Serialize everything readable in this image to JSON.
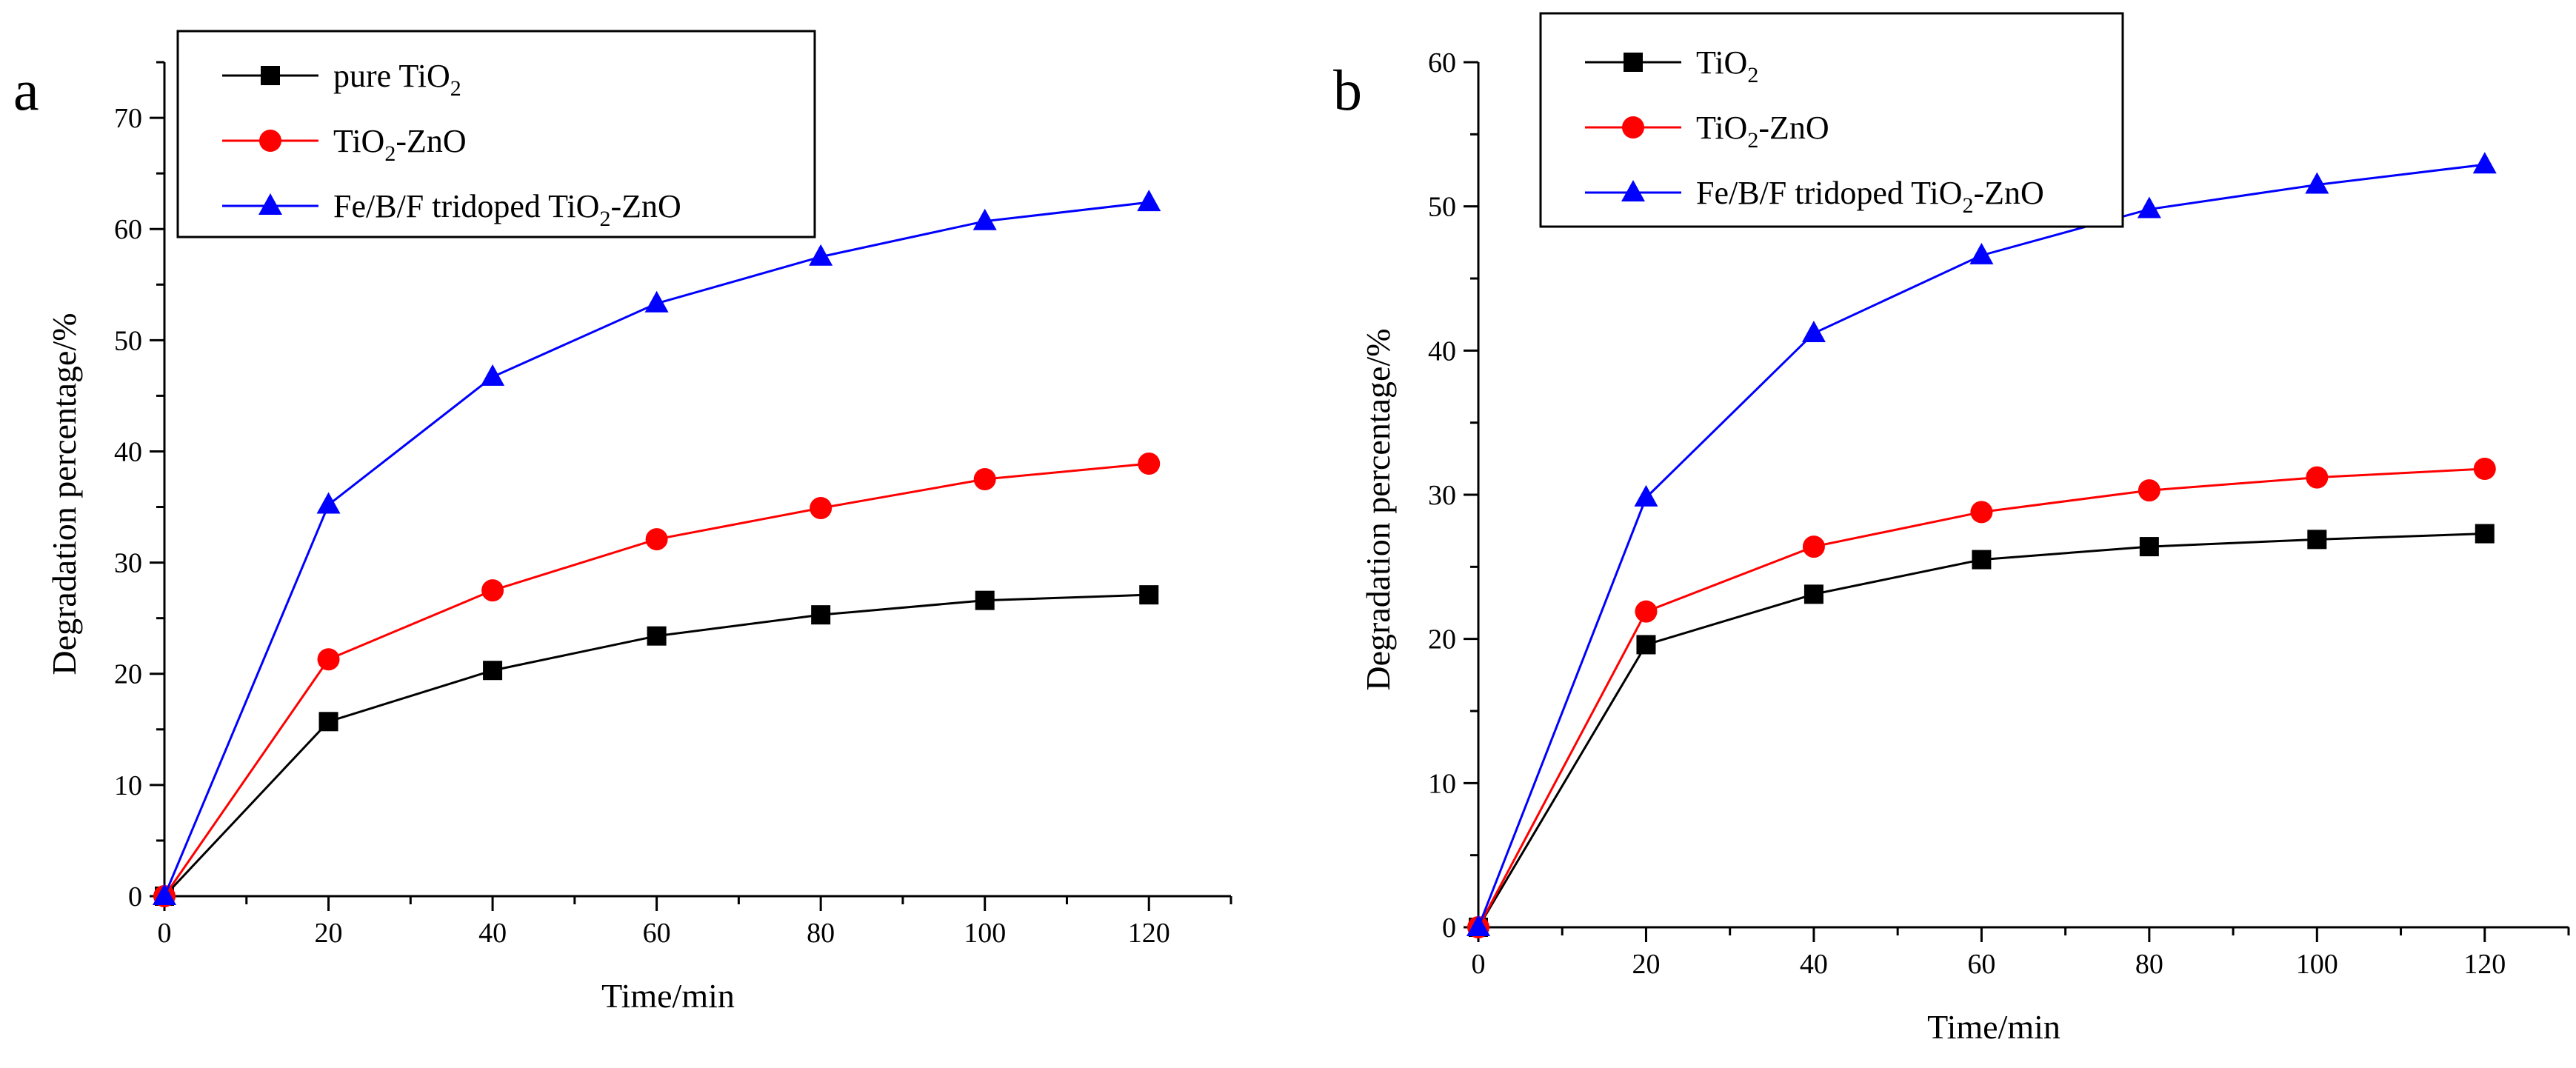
{
  "chart_data": [
    {
      "panel_label": "a",
      "type": "line",
      "xlabel": "Time/min",
      "ylabel": "Degradation percentage/%",
      "xlim": [
        0,
        130
      ],
      "ylim": [
        0,
        75
      ],
      "xticks": [
        0,
        20,
        40,
        60,
        80,
        100,
        120
      ],
      "yticks": [
        0,
        10,
        20,
        30,
        40,
        50,
        60,
        70
      ],
      "legend_position": "top-left",
      "grid": false,
      "x": [
        0,
        20,
        40,
        60,
        80,
        100,
        120
      ],
      "series": [
        {
          "name": "pure TiO2",
          "legend": {
            "pre": "pure TiO",
            "sub": "2",
            "post": ""
          },
          "color": "#000000",
          "marker": "square",
          "values": [
            0,
            15.7,
            20.3,
            23.4,
            25.3,
            26.6,
            27.1
          ]
        },
        {
          "name": "TiO2-ZnO",
          "legend": {
            "pre": "TiO",
            "sub": "2",
            "post": "-ZnO"
          },
          "color": "#ff0000",
          "marker": "circle",
          "values": [
            0,
            21.3,
            27.5,
            32.1,
            34.9,
            37.5,
            38.9
          ]
        },
        {
          "name": "Fe/B/F tridoped TiO2-ZnO",
          "legend": {
            "pre": "Fe/B/F tridoped TiO",
            "sub": "2",
            "post": "-ZnO"
          },
          "color": "#0000ff",
          "marker": "triangle",
          "values": [
            0,
            35.2,
            46.7,
            53.3,
            57.5,
            60.7,
            62.4
          ]
        }
      ]
    },
    {
      "panel_label": "b",
      "type": "line",
      "xlabel": "Time/min",
      "ylabel": "Degradation percentage/%",
      "xlim": [
        0,
        130
      ],
      "ylim": [
        0,
        60
      ],
      "xticks": [
        0,
        20,
        40,
        60,
        80,
        100,
        120
      ],
      "yticks": [
        0,
        10,
        20,
        30,
        40,
        50,
        60
      ],
      "legend_position": "top-left",
      "grid": false,
      "x": [
        0,
        20,
        40,
        60,
        80,
        100,
        120
      ],
      "series": [
        {
          "name": "TiO2",
          "legend": {
            "pre": "TiO",
            "sub": "2",
            "post": ""
          },
          "color": "#000000",
          "marker": "square",
          "values": [
            0,
            19.6,
            23.1,
            25.5,
            26.4,
            26.9,
            27.3
          ]
        },
        {
          "name": "TiO2-ZnO",
          "legend": {
            "pre": "TiO",
            "sub": "2",
            "post": "-ZnO"
          },
          "color": "#ff0000",
          "marker": "circle",
          "values": [
            0,
            21.9,
            26.4,
            28.8,
            30.3,
            31.2,
            31.8
          ]
        },
        {
          "name": "Fe/B/F tridoped TiO2-ZnO",
          "legend": {
            "pre": "Fe/B/F tridoped TiO",
            "sub": "2",
            "post": "-ZnO"
          },
          "color": "#0000ff",
          "marker": "triangle",
          "values": [
            0,
            29.8,
            41.2,
            46.6,
            49.8,
            51.5,
            52.9
          ]
        }
      ]
    }
  ]
}
